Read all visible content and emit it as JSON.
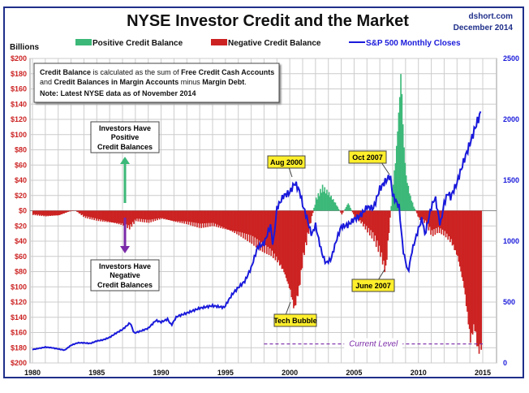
{
  "chart_data": {
    "type": "bar+line",
    "title": "NYSE Investor Credit and the Market",
    "source": "dshort.com",
    "date": "December 2014",
    "ylabel": "Billions",
    "ylim": [
      -200,
      200
    ],
    "y2lim": [
      0,
      2500
    ],
    "xlim": [
      1980,
      2015
    ],
    "yticks": [
      "$200",
      "$180",
      "$160",
      "$140",
      "$120",
      "$100",
      "$80",
      "$60",
      "$40",
      "$20",
      "$0",
      "$20",
      "$40",
      "$60",
      "$80",
      "$100",
      "$120",
      "$140",
      "$160",
      "$180",
      "$200"
    ],
    "y2ticks": [
      "0",
      "500",
      "1000",
      "1500",
      "2000",
      "2500"
    ],
    "xticks": [
      "1980",
      "1985",
      "1990",
      "1995",
      "2000",
      "2005",
      "2010",
      "2015"
    ],
    "legend": {
      "positive": "Positive Credit Balance",
      "negative": "Negative Credit Balance",
      "sp500": "S&P 500 Monthly Closes"
    },
    "colors": {
      "positive": "#3cb878",
      "negative": "#cc2222",
      "sp500": "#1a1adb",
      "current": "#7a2aa8"
    },
    "credit_balance": [
      [
        1980,
        -5
      ],
      [
        1981,
        -7
      ],
      [
        1982,
        -6
      ],
      [
        1982.8,
        -1
      ],
      [
        1983.3,
        0
      ],
      [
        1984,
        -8
      ],
      [
        1985,
        -12
      ],
      [
        1986,
        -15
      ],
      [
        1987,
        -18
      ],
      [
        1987.5,
        -22
      ],
      [
        1988,
        -12
      ],
      [
        1989,
        -14
      ],
      [
        1990,
        -10
      ],
      [
        1991,
        -14
      ],
      [
        1992,
        -16
      ],
      [
        1993,
        -20
      ],
      [
        1994,
        -18
      ],
      [
        1995,
        -24
      ],
      [
        1996,
        -30
      ],
      [
        1997,
        -38
      ],
      [
        1997.8,
        -48
      ],
      [
        1998.5,
        -55
      ],
      [
        1999,
        -65
      ],
      [
        1999.5,
        -80
      ],
      [
        2000,
        -105
      ],
      [
        2000.3,
        -130
      ],
      [
        2000.7,
        -100
      ],
      [
        2001,
        -60
      ],
      [
        2001.5,
        -20
      ],
      [
        2002,
        15
      ],
      [
        2002.5,
        30
      ],
      [
        2003,
        22
      ],
      [
        2003.5,
        10
      ],
      [
        2004,
        -5
      ],
      [
        2004.5,
        10
      ],
      [
        2005,
        -8
      ],
      [
        2005.5,
        -15
      ],
      [
        2006,
        -25
      ],
      [
        2006.5,
        -35
      ],
      [
        2007,
        -55
      ],
      [
        2007.4,
        -80
      ],
      [
        2007.6,
        -40
      ],
      [
        2007.9,
        20
      ],
      [
        2008.2,
        70
      ],
      [
        2008.5,
        150
      ],
      [
        2008.6,
        185
      ],
      [
        2008.8,
        90
      ],
      [
        2009,
        45
      ],
      [
        2009.3,
        20
      ],
      [
        2009.6,
        5
      ],
      [
        2010,
        -10
      ],
      [
        2010.5,
        -15
      ],
      [
        2011,
        -30
      ],
      [
        2011.5,
        -25
      ],
      [
        2012,
        -30
      ],
      [
        2012.5,
        -40
      ],
      [
        2013,
        -60
      ],
      [
        2013.5,
        -100
      ],
      [
        2014,
        -170
      ],
      [
        2014.3,
        -150
      ],
      [
        2014.6,
        -185
      ],
      [
        2014.9,
        -175
      ]
    ],
    "sp500": [
      [
        1980,
        110
      ],
      [
        1980.5,
        120
      ],
      [
        1981,
        130
      ],
      [
        1981.5,
        125
      ],
      [
        1982,
        115
      ],
      [
        1982.5,
        105
      ],
      [
        1983,
        145
      ],
      [
        1983.5,
        165
      ],
      [
        1984,
        165
      ],
      [
        1984.5,
        160
      ],
      [
        1985,
        180
      ],
      [
        1985.5,
        190
      ],
      [
        1986,
        210
      ],
      [
        1986.5,
        245
      ],
      [
        1987,
        275
      ],
      [
        1987.6,
        330
      ],
      [
        1987.9,
        245
      ],
      [
        1988.5,
        265
      ],
      [
        1989,
        285
      ],
      [
        1989.6,
        350
      ],
      [
        1990,
        335
      ],
      [
        1990.5,
        360
      ],
      [
        1990.8,
        310
      ],
      [
        1991.2,
        380
      ],
      [
        1992,
        410
      ],
      [
        1993,
        450
      ],
      [
        1994,
        470
      ],
      [
        1994.9,
        455
      ],
      [
        1995.5,
        560
      ],
      [
        1996,
        620
      ],
      [
        1996.5,
        670
      ],
      [
        1997,
        780
      ],
      [
        1997.5,
        950
      ],
      [
        1998,
        980
      ],
      [
        1998.5,
        1130
      ],
      [
        1998.7,
        960
      ],
      [
        1999,
        1270
      ],
      [
        1999.5,
        1370
      ],
      [
        2000,
        1400
      ],
      [
        2000.4,
        1480
      ],
      [
        2000.8,
        1400
      ],
      [
        2001,
        1300
      ],
      [
        2001.3,
        1200
      ],
      [
        2001.7,
        1050
      ],
      [
        2002,
        1130
      ],
      [
        2002.5,
        900
      ],
      [
        2002.8,
        820
      ],
      [
        2003.2,
        850
      ],
      [
        2003.6,
        1000
      ],
      [
        2004,
        1120
      ],
      [
        2004.5,
        1130
      ],
      [
        2005,
        1180
      ],
      [
        2005.5,
        1210
      ],
      [
        2006,
        1280
      ],
      [
        2006.5,
        1270
      ],
      [
        2007,
        1430
      ],
      [
        2007.5,
        1500
      ],
      [
        2007.8,
        1540
      ],
      [
        2008,
        1380
      ],
      [
        2008.5,
        1280
      ],
      [
        2008.8,
        930
      ],
      [
        2009.2,
        740
      ],
      [
        2009.5,
        920
      ],
      [
        2010,
        1100
      ],
      [
        2010.3,
        1190
      ],
      [
        2010.5,
        1050
      ],
      [
        2011,
        1280
      ],
      [
        2011.3,
        1360
      ],
      [
        2011.7,
        1130
      ],
      [
        2012,
        1310
      ],
      [
        2012.3,
        1400
      ],
      [
        2012.5,
        1360
      ],
      [
        2013,
        1480
      ],
      [
        2013.5,
        1650
      ],
      [
        2014,
        1800
      ],
      [
        2014.5,
        1960
      ],
      [
        2014.9,
        2070
      ]
    ],
    "current_level": -175,
    "current_label": "Current Level",
    "annotations": {
      "info_line1_a": "Credit Balance",
      "info_line1_b": " is calculated as the sum of ",
      "info_line1_c": "Free Credit Cash Accounts",
      "info_line2_a": "and ",
      "info_line2_b": "Credit Balances in Margin Accounts",
      "info_line2_c": " minus ",
      "info_line2_d": "Margin Debt",
      "info_note": "Note: Latest NYSE data as of November 2014",
      "positive_1": "Investors Have",
      "positive_2": "Positive",
      "positive_3": "Credit Balances",
      "negative_1": "Investors Have",
      "negative_2": "Negative",
      "negative_3": "Credit Balances",
      "aug2000": "Aug 2000",
      "oct2007": "Oct 2007",
      "june2007": "June 2007",
      "tech_bubble": "Tech Bubble"
    }
  }
}
